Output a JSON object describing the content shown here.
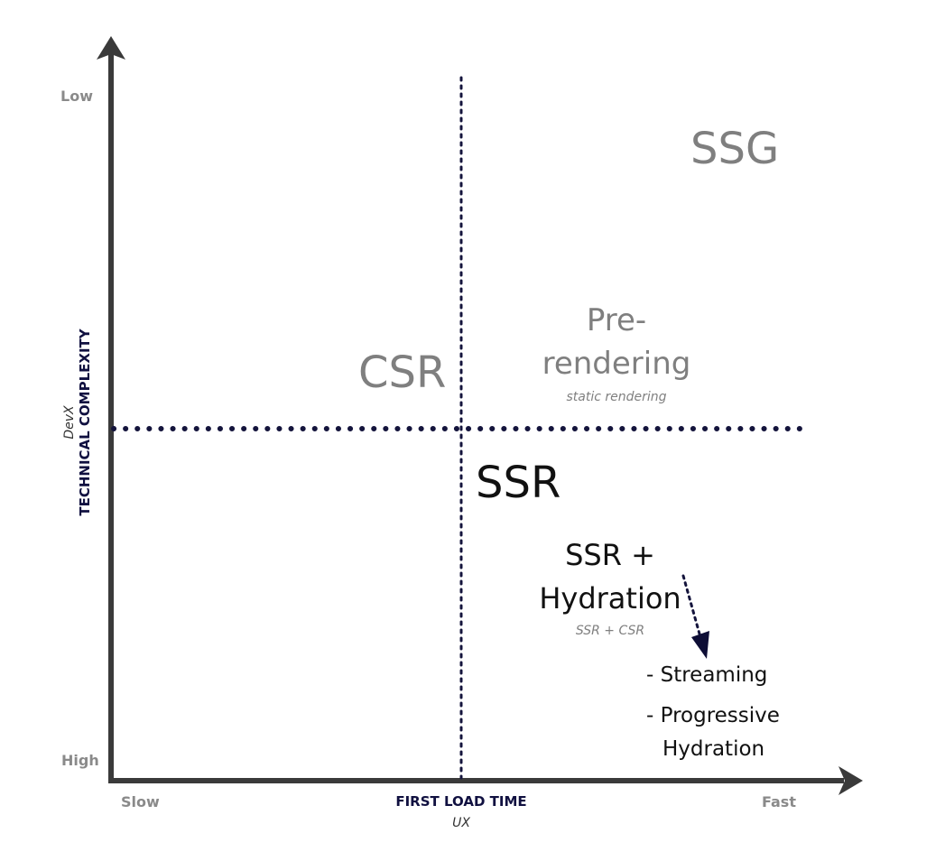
{
  "axes": {
    "x": {
      "title": "FIRST LOAD TIME",
      "subtitle": "UX",
      "min_label": "Slow",
      "max_label": "Fast"
    },
    "y": {
      "title": "TECHNICAL COMPLEXITY",
      "subtitle": "DevX",
      "min_label": "High",
      "max_label": "Low"
    }
  },
  "labels": {
    "ssg": "SSG",
    "csr": "CSR",
    "prerendering_line1": "Pre-",
    "prerendering_line2": "rendering",
    "prerendering_note": "static rendering",
    "ssr": "SSR",
    "ssr_hydration_line1": "SSR +",
    "ssr_hydration_line2": "Hydration",
    "ssr_hydration_note": "SSR + CSR",
    "streaming": "- Streaming",
    "progressive_line1": "- Progressive",
    "progressive_line2": "Hydration"
  },
  "colors": {
    "axis": "#3a3a3a",
    "divider": "#14143c",
    "grey_text": "#7f7f7f",
    "dark_text": "#111111"
  }
}
